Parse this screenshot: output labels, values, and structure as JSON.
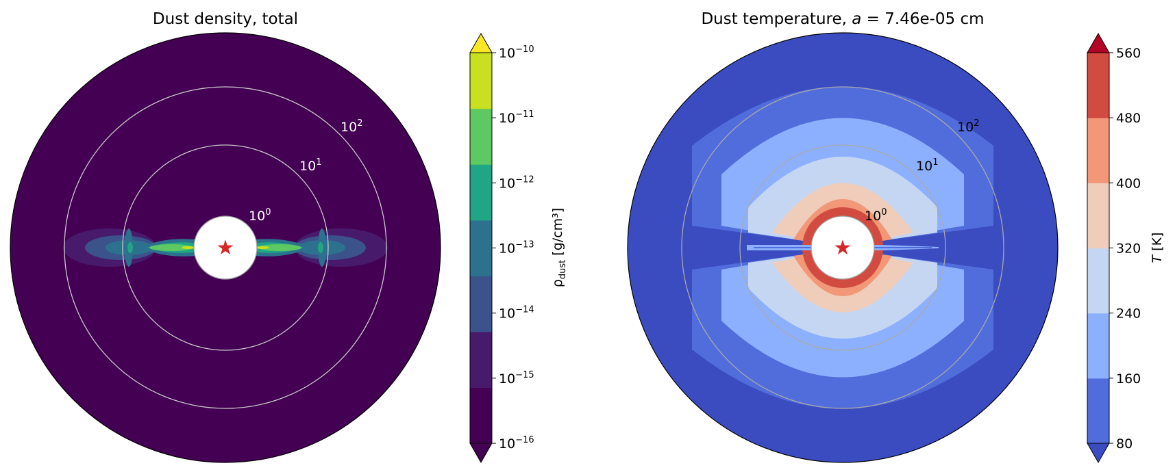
{
  "chart_data": [
    {
      "type": "heatmap",
      "projection": "polar",
      "title": "Dust density, total",
      "radial_scale": "log",
      "radial_ticks": [
        {
          "base": "10",
          "exp": "0"
        },
        {
          "base": "10",
          "exp": "1"
        },
        {
          "base": "10",
          "exp": "2"
        }
      ],
      "grid": true,
      "star_marker": "star-icon",
      "colorbar": {
        "label_main": "ρ",
        "label_sub": "dust",
        "label_unit": " [g/cm³]",
        "scale": "log",
        "extend": "both",
        "ticks": [
          {
            "base": "10",
            "exp": "−10"
          },
          {
            "base": "10",
            "exp": "−11"
          },
          {
            "base": "10",
            "exp": "−12"
          },
          {
            "base": "10",
            "exp": "−13"
          },
          {
            "base": "10",
            "exp": "−14"
          },
          {
            "base": "10",
            "exp": "−15"
          },
          {
            "base": "10",
            "exp": "−16"
          }
        ],
        "levels": [
          -16,
          -15,
          -14,
          -13,
          -12,
          -11,
          -10
        ],
        "colors": [
          "#440154",
          "#481a6c",
          "#3b528b",
          "#2c728e",
          "#21a685",
          "#5ec962",
          "#c8e020"
        ],
        "under_color": "#440154",
        "over_color": "#fde725"
      }
    },
    {
      "type": "heatmap",
      "projection": "polar",
      "title_prefix": "Dust temperature, ",
      "title_var": "a",
      "title_suffix": " = 7.46e-05 cm",
      "radial_scale": "log",
      "radial_ticks": [
        {
          "base": "10",
          "exp": "0"
        },
        {
          "base": "10",
          "exp": "1"
        },
        {
          "base": "10",
          "exp": "2"
        }
      ],
      "grid": true,
      "star_marker": "star-icon",
      "colorbar": {
        "label_var": "T",
        "label_unit": " [K]",
        "scale": "linear",
        "extend": "both",
        "ticks": [
          "560",
          "480",
          "400",
          "320",
          "240",
          "160",
          "80"
        ],
        "levels": [
          80,
          160,
          240,
          320,
          400,
          480,
          560
        ],
        "colors": [
          "#516ddb",
          "#8db0fe",
          "#c5d6f2",
          "#f0cdbb",
          "#f29879",
          "#d24b40"
        ],
        "under_color": "#3b4cc0",
        "over_color": "#b40426"
      }
    }
  ]
}
